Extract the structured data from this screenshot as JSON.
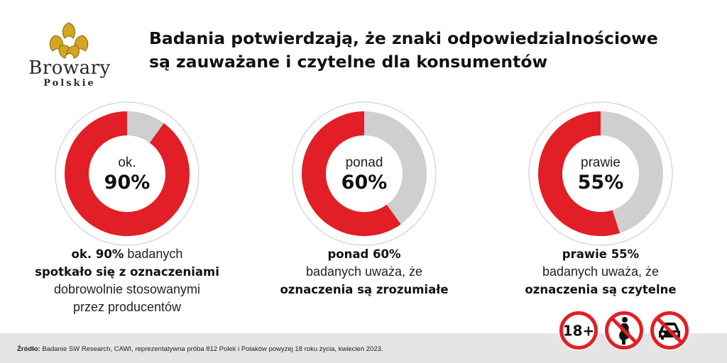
{
  "logo": {
    "wordmark": "Browary",
    "sub": "Polskie"
  },
  "headline": {
    "line1": "Badania potwierdzają, że znaki odpowiedzialnościowe",
    "line2": "są zauważane i czytelne dla konsumentów"
  },
  "colors": {
    "accent": "#e21e26",
    "neutral": "#cfcfcf",
    "footer_bg": "#e5e5e5"
  },
  "chart_data": [
    {
      "type": "pie",
      "title": "",
      "prefix": "ok.",
      "value_label": "90%",
      "slices": [
        {
          "label": "",
          "value": 90
        },
        {
          "label": "",
          "value": 10
        }
      ]
    },
    {
      "type": "pie",
      "title": "",
      "prefix": "ponad",
      "value_label": "60%",
      "slices": [
        {
          "label": "",
          "value": 60
        },
        {
          "label": "",
          "value": 40
        }
      ]
    },
    {
      "type": "pie",
      "title": "",
      "prefix": "prawie",
      "value_label": "55%",
      "slices": [
        {
          "label": "",
          "value": 55
        },
        {
          "label": "",
          "value": 45
        }
      ]
    }
  ],
  "captions": [
    {
      "line1_bold": "ok. 90%",
      "line1_rest": " badanych",
      "line2_bold": "spotkało się z oznaczeniami",
      "line3": "dobrowolnie stosowanymi",
      "line4": "przez producentów"
    },
    {
      "line1_bold": "ponad 60%",
      "line2": "badanych uważa, że",
      "line3_bold": "oznaczenia są zrozumiałe"
    },
    {
      "line1_bold": "prawie 55%",
      "line2": "badanych uważa, że",
      "line3_bold": "oznaczenia są czytelne"
    }
  ],
  "signs": [
    {
      "icon": "age-18-plus-icon",
      "text": "18+"
    },
    {
      "icon": "no-pregnant-icon"
    },
    {
      "icon": "no-driving-icon"
    }
  ],
  "footer": {
    "label": "Źródło:",
    "text": " Badanie SW Research, CAWI, reprezentatywna próba 812 Polek i Polaków powyżej 18 roku życia, kwiecień 2023."
  }
}
